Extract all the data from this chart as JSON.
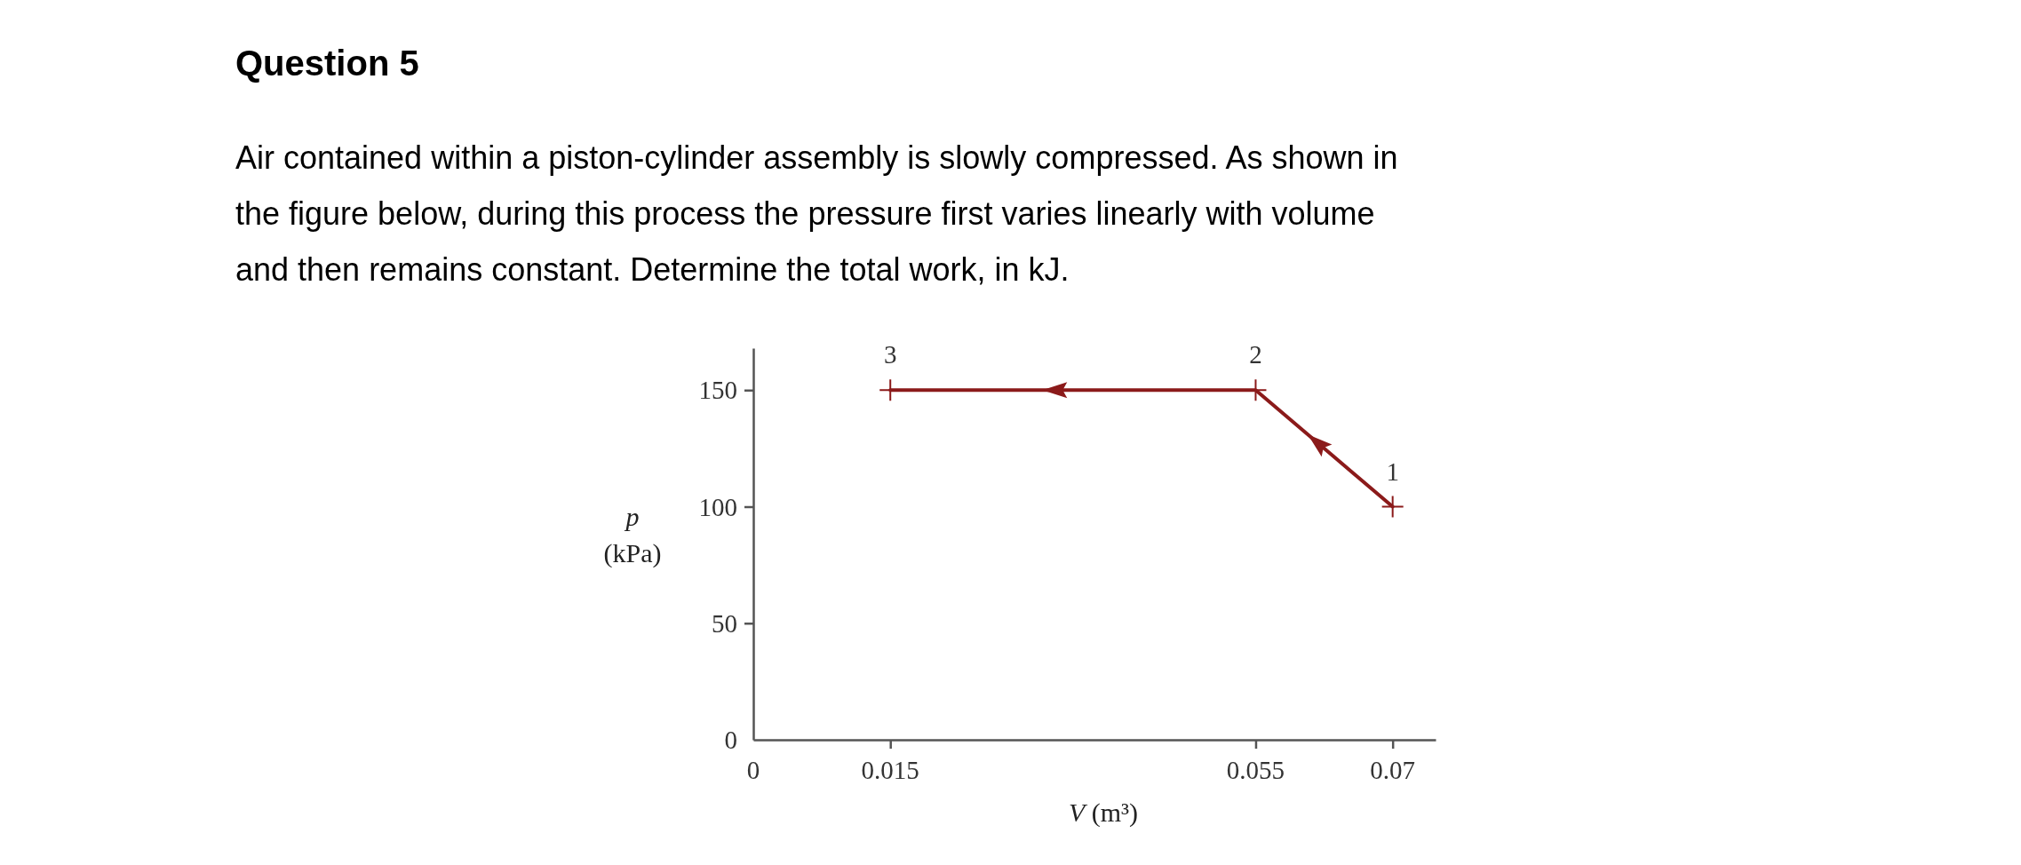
{
  "chart_data": {
    "type": "line",
    "title": "Question 5",
    "subtitle": "Air contained within a piston-cylinder assembly is slowly compressed. As shown in the figure below, during this process the pressure first varies linearly with volume and then remains constant. Determine the total work, in kJ.",
    "xlabel": "V (m³)",
    "ylabel": "p (kPa)",
    "series": [
      {
        "color": "#8b1a1a",
        "x": [
          0.07,
          0.055,
          0.015
        ],
        "values": [
          100,
          150,
          150
        ]
      }
    ],
    "marker": "cross",
    "xlim": [
      0,
      0.0747
    ],
    "ylim": [
      0,
      168
    ],
    "xticks": [
      0,
      0.015,
      0.055,
      0.07
    ],
    "yticks": [
      0,
      50,
      100,
      150
    ],
    "grid": false,
    "annotations": [
      {
        "text": "1",
        "x": 0.07,
        "y": 100
      },
      {
        "text": "2",
        "x": 0.055,
        "y": 150
      },
      {
        "text": "3",
        "x": 0.015,
        "y": 150
      }
    ]
  }
}
